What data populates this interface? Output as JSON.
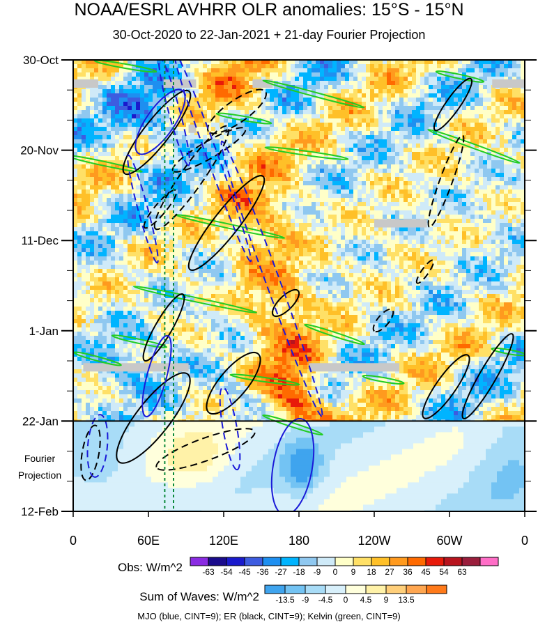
{
  "chart_data": {
    "type": "heatmap",
    "title": "NOAA/ESRL AVHRR OLR anomalies: 15°S - 15°N",
    "subtitle": "30-Oct-2020 to 22-Jan-2021 + 21-day Fourier Projection",
    "x_ticks": [
      "0",
      "60E",
      "120E",
      "180",
      "120W",
      "60W",
      "0"
    ],
    "x_range_deg_east": [
      0,
      360
    ],
    "y_ticks": [
      "30-Oct",
      "20-Nov",
      "11-Dec",
      "1-Jan",
      "22-Jan",
      "12-Feb"
    ],
    "y_tick_days": [
      0,
      21,
      42,
      63,
      84,
      105
    ],
    "observation_end_day": 84,
    "projection_label": [
      "Fourier",
      "Projection"
    ],
    "reference_lines_deg_east": [
      73,
      80
    ],
    "obs_legend": {
      "label": "Obs: W/m^2",
      "levels": [
        "-63",
        "-54",
        "-45",
        "-36",
        "-27",
        "-18",
        "-9",
        "0",
        "9",
        "18",
        "27",
        "36",
        "45",
        "54",
        "63"
      ],
      "colors": [
        "#8a2be2",
        "#1a0b8c",
        "#1a1acc",
        "#3d5ce0",
        "#1e8ff0",
        "#00b4ff",
        "#8fc8f0",
        "#cfeaf8",
        "#ffffc8",
        "#ffe066",
        "#ffc028",
        "#ff9a1e",
        "#ff6a00",
        "#e81a0a",
        "#b8141e",
        "#9a1e3c",
        "#ff6ec7"
      ]
    },
    "waves_legend": {
      "label": "Sum of Waves: W/m^2",
      "levels": [
        "-13.5",
        "-9",
        "-4.5",
        "0",
        "4.5",
        "9",
        "13.5"
      ],
      "colors": [
        "#3fa4ee",
        "#73c3f3",
        "#a8dcf7",
        "#d8f0fb",
        "#ffffdc",
        "#fff2a8",
        "#ffcf7a",
        "#ffa650",
        "#ff7a1a"
      ]
    },
    "contours_note": "MJO (blue, CINT=9); ER (black, CINT=9); Kelvin (green, CINT=9)",
    "series": [
      {
        "name": "MJO",
        "color": "#1a1ad8"
      },
      {
        "name": "ER",
        "color": "#000000"
      },
      {
        "name": "Kelvin",
        "color": "#22cc22"
      }
    ]
  }
}
